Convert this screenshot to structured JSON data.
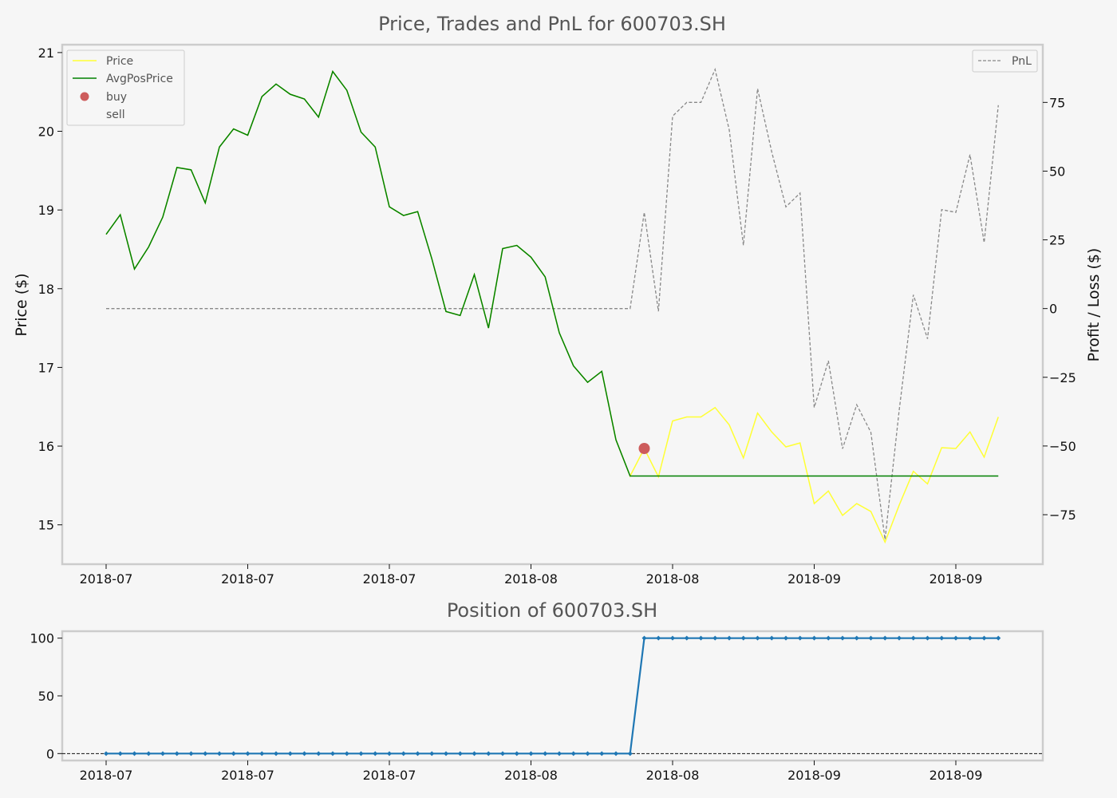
{
  "chart_data": [
    {
      "type": "line",
      "title": "Price, Trades and PnL for 600703.SH",
      "ylabel": "Price ($)",
      "y2label": "Profit / Loss ($)",
      "ylim": [
        14.5,
        21.1
      ],
      "y2lim": [
        -93,
        96
      ],
      "yticks": [
        15,
        16,
        17,
        18,
        19,
        20,
        21
      ],
      "y2ticks": [
        -75,
        -50,
        -25,
        0,
        25,
        50,
        75
      ],
      "x_tick_labels": [
        "2018-07",
        "2018-07",
        "2018-07",
        "2018-08",
        "2018-08",
        "2018-09",
        "2018-09"
      ],
      "series": [
        {
          "name": "Price",
          "color": "#ffff33",
          "values": [
            18.69,
            18.94,
            18.25,
            18.53,
            18.91,
            19.54,
            19.51,
            19.09,
            19.8,
            20.03,
            19.95,
            20.44,
            20.6,
            20.47,
            20.41,
            20.18,
            20.76,
            20.52,
            19.99,
            19.8,
            19.04,
            18.93,
            18.98,
            18.38,
            17.71,
            17.66,
            18.18,
            17.5,
            18.51,
            18.55,
            18.4,
            18.15,
            17.44,
            17.02,
            16.81,
            16.95,
            16.08,
            15.62,
            15.97,
            15.61,
            16.32,
            16.37,
            16.37,
            16.49,
            16.27,
            15.85,
            16.42,
            16.18,
            15.99,
            16.04,
            15.27,
            15.43,
            15.12,
            15.27,
            15.17,
            14.78,
            15.25,
            15.68,
            15.52,
            15.98,
            15.97,
            16.18,
            15.86,
            16.37
          ]
        },
        {
          "name": "AvgPosPrice",
          "color": "#008000",
          "values": [
            18.69,
            18.94,
            18.25,
            18.53,
            18.91,
            19.54,
            19.51,
            19.09,
            19.8,
            20.03,
            19.95,
            20.44,
            20.6,
            20.47,
            20.41,
            20.18,
            20.76,
            20.52,
            19.99,
            19.8,
            19.04,
            18.93,
            18.98,
            18.38,
            17.71,
            17.66,
            18.18,
            17.5,
            18.51,
            18.55,
            18.4,
            18.15,
            17.44,
            17.02,
            16.81,
            16.95,
            16.08,
            15.62,
            15.62,
            15.62,
            15.62,
            15.62,
            15.62,
            15.62,
            15.62,
            15.62,
            15.62,
            15.62,
            15.62,
            15.62,
            15.62,
            15.62,
            15.62,
            15.62,
            15.62,
            15.62,
            15.62,
            15.62,
            15.62,
            15.62,
            15.62,
            15.62,
            15.62,
            15.62
          ]
        },
        {
          "name": "buy",
          "color": "#cd5c5c",
          "type": "scatter",
          "points": [
            {
              "index": 38,
              "value": 15.97
            }
          ]
        },
        {
          "name": "sell",
          "type": "scatter",
          "points": []
        },
        {
          "name": "PnL",
          "color": "#888888",
          "axis": "right",
          "values": [
            0,
            0,
            0,
            0,
            0,
            0,
            0,
            0,
            0,
            0,
            0,
            0,
            0,
            0,
            0,
            0,
            0,
            0,
            0,
            0,
            0,
            0,
            0,
            0,
            0,
            0,
            0,
            0,
            0,
            0,
            0,
            0,
            0,
            0,
            0,
            0,
            0,
            0,
            35,
            -1,
            70,
            75,
            75,
            87,
            65,
            23,
            80,
            57,
            37,
            42,
            -36,
            -19,
            -51,
            -35,
            -45,
            -84,
            -37,
            5,
            -11,
            36,
            35,
            56,
            24,
            74
          ]
        }
      ],
      "legend_left": [
        "Price",
        "AvgPosPrice",
        "buy",
        "sell"
      ],
      "legend_right": [
        "PnL"
      ],
      "legend_left_loc": "upper left",
      "legend_right_loc": "upper right",
      "grid": false
    },
    {
      "type": "line",
      "title": "Position of 600703.SH",
      "ylim": [
        -6,
        106
      ],
      "yticks": [
        0,
        50,
        100
      ],
      "x_tick_labels": [
        "2018-07",
        "2018-07",
        "2018-07",
        "2018-08",
        "2018-08",
        "2018-09",
        "2018-09"
      ],
      "series": [
        {
          "name": "Position",
          "color": "#1f77b4",
          "marker": "diamond",
          "values": [
            0,
            0,
            0,
            0,
            0,
            0,
            0,
            0,
            0,
            0,
            0,
            0,
            0,
            0,
            0,
            0,
            0,
            0,
            0,
            0,
            0,
            0,
            0,
            0,
            0,
            0,
            0,
            0,
            0,
            0,
            0,
            0,
            0,
            0,
            0,
            0,
            0,
            0,
            100,
            100,
            100,
            100,
            100,
            100,
            100,
            100,
            100,
            100,
            100,
            100,
            100,
            100,
            100,
            100,
            100,
            100,
            100,
            100,
            100,
            100,
            100,
            100,
            100,
            100
          ]
        }
      ],
      "reference_line": 0,
      "grid": false
    }
  ]
}
